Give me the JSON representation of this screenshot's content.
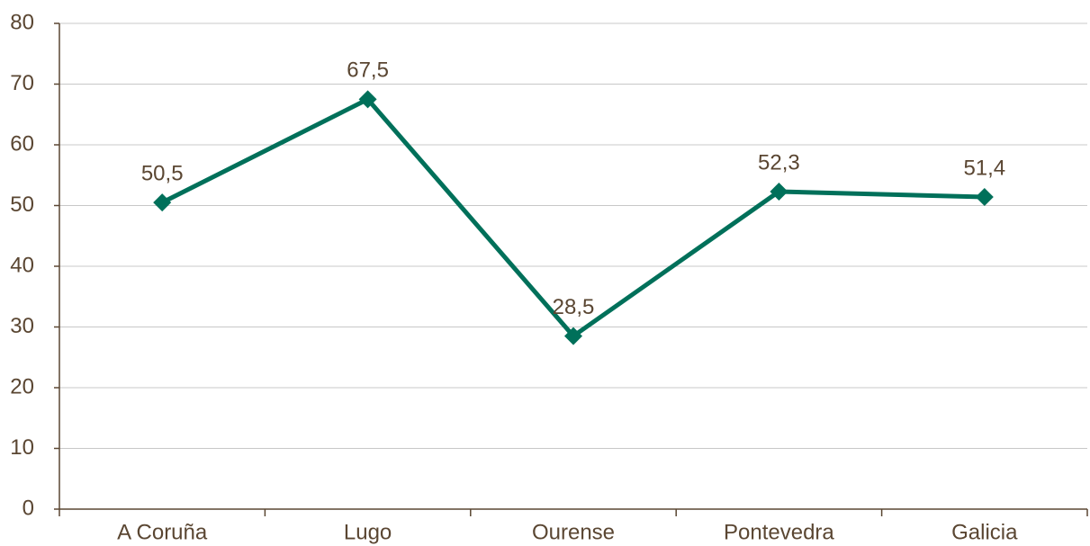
{
  "chart_data": {
    "type": "line",
    "categories": [
      "A Coruña",
      "Lugo",
      "Ourense",
      "Pontevedra",
      "Galicia"
    ],
    "series": [
      {
        "name": null,
        "color": "#00705a",
        "values": [
          50.5,
          67.5,
          28.5,
          52.3,
          51.4
        ],
        "value_labels": [
          "50,5",
          "67,5",
          "28,5",
          "52,3",
          "51,4"
        ]
      }
    ],
    "ylim": [
      0,
      80
    ],
    "yticks": [
      0,
      10,
      20,
      30,
      40,
      50,
      60,
      70,
      80
    ],
    "grid": true
  }
}
